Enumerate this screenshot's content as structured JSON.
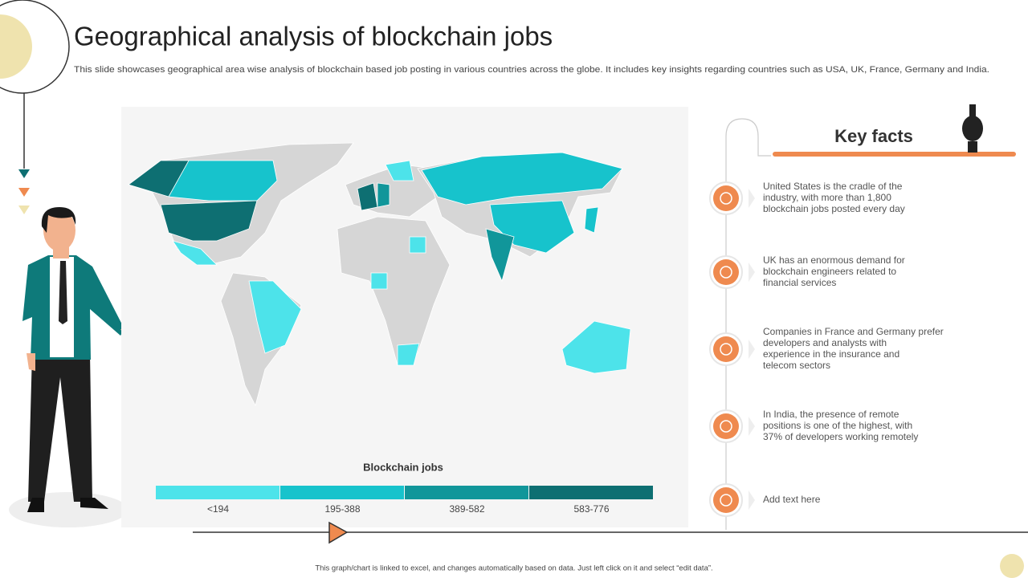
{
  "header": {
    "title": "Geographical analysis of blockchain jobs",
    "subtitle": "This slide showcases geographical area wise analysis of blockchain based job posting in various countries across the globe. It includes key insights regarding countries such as USA, UK, France, Germany and India."
  },
  "map": {
    "legend_title": "Blockchain jobs",
    "bins": [
      {
        "label": "<194",
        "color": "#4de3ea"
      },
      {
        "label": "195-388",
        "color": "#17c3cc"
      },
      {
        "label": "389-582",
        "color": "#11969a"
      },
      {
        "label": "583-776",
        "color": "#0e6f72"
      }
    ]
  },
  "key_facts": {
    "title": "Key facts",
    "items": [
      "United States is the cradle of the industry, with more than 1,800 blockchain jobs posted every day",
      "UK has an enormous demand for blockchain engineers related to financial services",
      "Companies in France and Germany prefer developers and analysts with experience in the insurance and telecom sectors",
      "In India, the presence of remote positions is one of the highest, with 37% of developers working remotely",
      "Add text here"
    ]
  },
  "footer": "This graph/chart is linked to excel, and changes automatically based on data. Just left click on it and select “edit data”."
}
